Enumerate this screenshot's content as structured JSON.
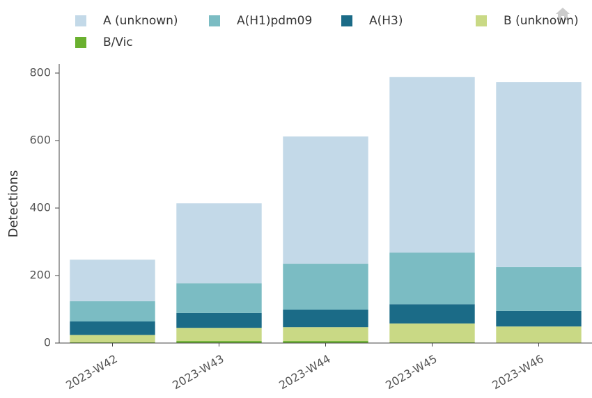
{
  "chart_data": {
    "type": "stacked_bar",
    "y_label": "Detections",
    "categories": [
      "2023-W42",
      "2023-W43",
      "2023-W44",
      "2023-W45",
      "2023-W46"
    ],
    "series": [
      {
        "name": "A (unknown)",
        "color": "#c3d9e8",
        "values": [
          123,
          237,
          377,
          520,
          548
        ]
      },
      {
        "name": "A(H1)pdm09",
        "color": "#7bbcc3",
        "values": [
          60,
          88,
          136,
          153,
          130
        ]
      },
      {
        "name": "A(H3)",
        "color": "#1b6b87",
        "values": [
          40,
          44,
          52,
          57,
          46
        ]
      },
      {
        "name": "B (unknown)",
        "color": "#c9d985",
        "values": [
          22,
          39,
          41,
          56,
          48
        ]
      },
      {
        "name": "B/Vic",
        "color": "#6ab02f",
        "values": [
          2,
          6,
          6,
          2,
          1
        ]
      }
    ],
    "ylim": [
      0,
      800
    ],
    "yticks": [
      0,
      200,
      400,
      600,
      800
    ]
  }
}
